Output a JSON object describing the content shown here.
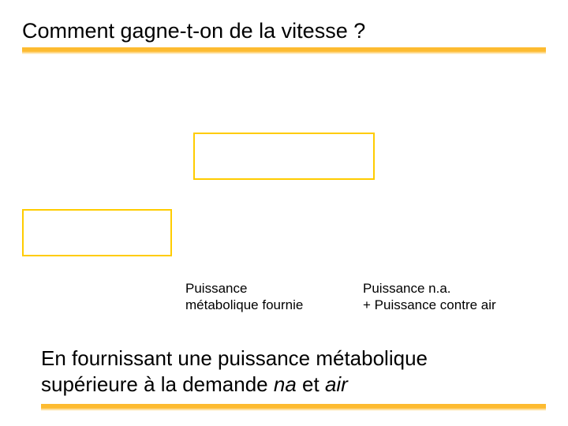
{
  "title": "Comment gagne-t-on de la vitesse ?",
  "captions": {
    "left": {
      "line1": "Puissance",
      "line2": "métabolique fournie"
    },
    "right": {
      "line1": "Puissance n.a.",
      "line2": "+ Puissance contre air"
    }
  },
  "conclusion": {
    "line1": "En fournissant une puissance métabolique",
    "line2_prefix": "supérieure à la demande ",
    "line2_italic1": "na",
    "line2_mid": " et ",
    "line2_italic2": "air"
  },
  "style": {
    "highlight_color": "#fdbb30",
    "box_border_color": "#ffcc00",
    "text_color": "#000000",
    "background_color": "#ffffff",
    "title_fontsize": 27,
    "caption_fontsize": 17,
    "conclusion_fontsize": 26,
    "box_border_width": 2
  }
}
